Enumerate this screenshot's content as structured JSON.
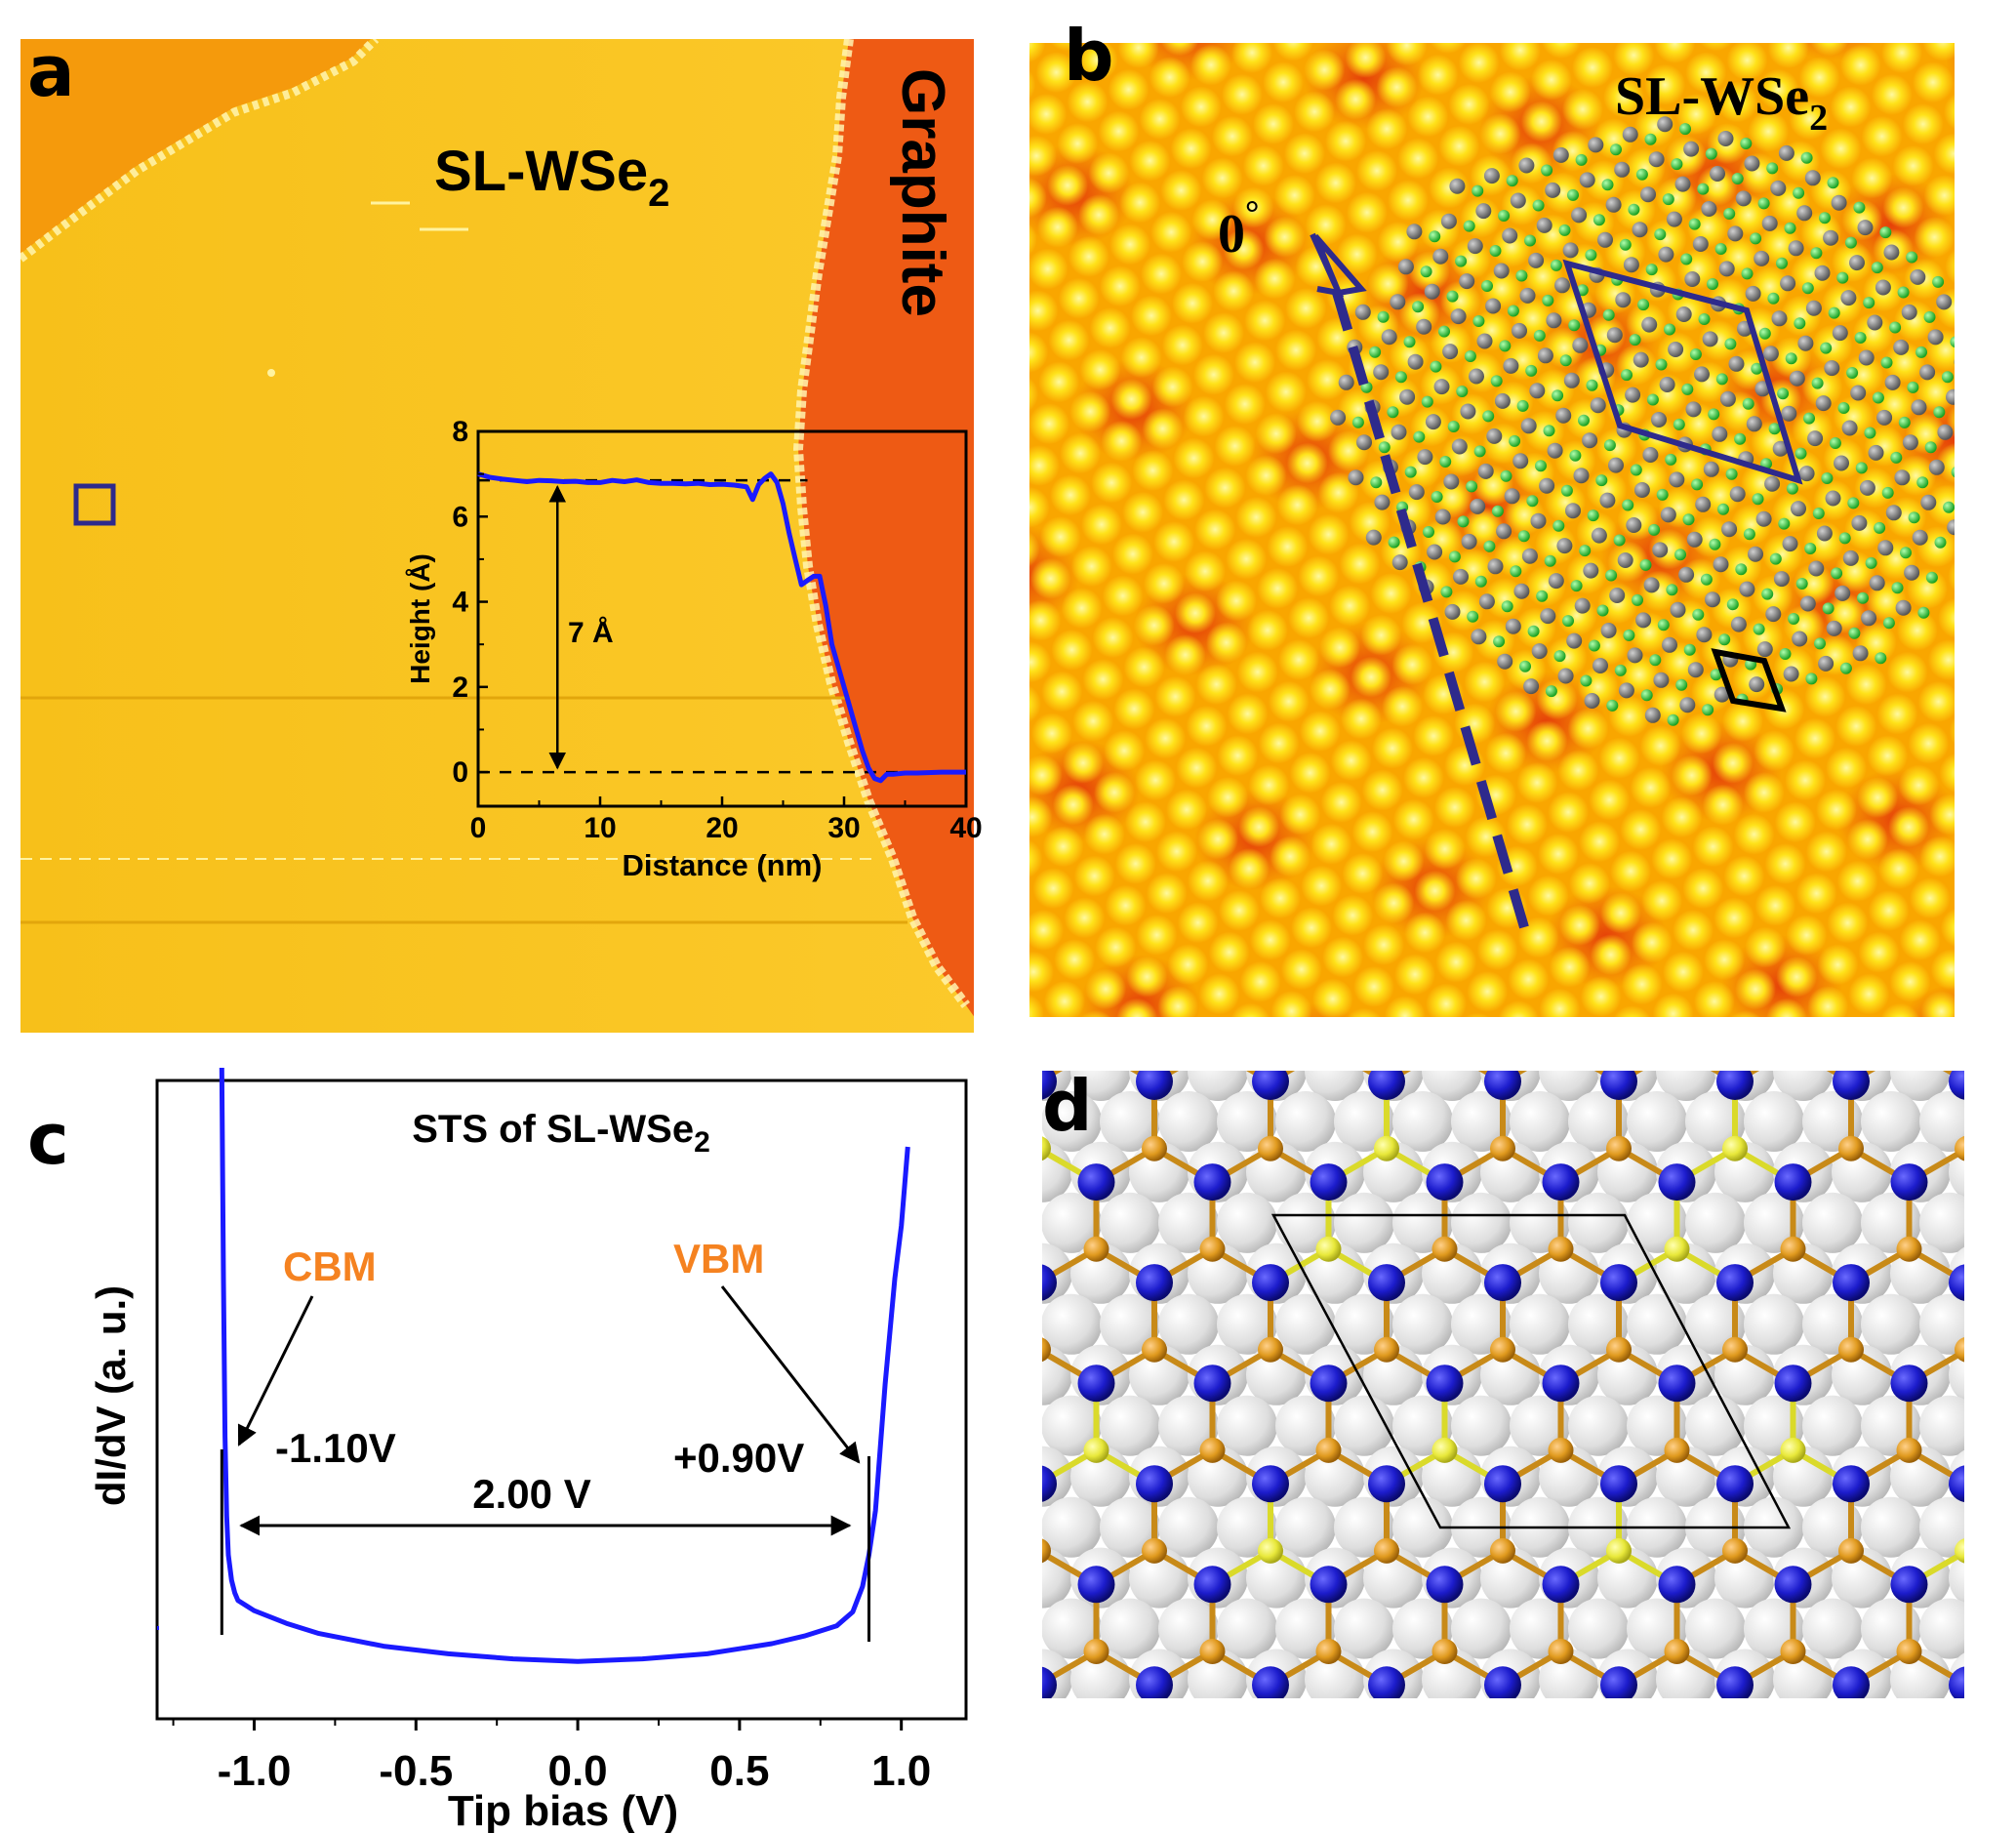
{
  "panels": {
    "a": {
      "letter": "a",
      "film_label": "SL-WSe",
      "film_sub": "2",
      "substrate_label": "Graphite",
      "inset": {
        "step_label": "7 Å",
        "chart_data": {
          "type": "line",
          "title": "",
          "xlabel": "Distance (nm)",
          "ylabel": "Height (Å)",
          "xlim": [
            0,
            40
          ],
          "ylim": [
            -0.8,
            8
          ],
          "xticks": [
            "0",
            "10",
            "20",
            "30",
            "40"
          ],
          "yticks": [
            "0",
            "2",
            "4",
            "6",
            "8"
          ],
          "series": [
            {
              "color": "#1a1aff",
              "x": [
                0,
                1,
                2,
                3,
                4,
                5,
                6,
                7,
                8,
                9,
                10,
                11,
                12,
                13,
                14,
                15,
                16,
                17,
                18,
                19,
                20,
                21,
                22,
                22.5,
                23,
                23.5,
                24,
                24.5,
                25,
                25.5,
                26,
                26.5,
                27,
                27.5,
                28,
                28.5,
                29,
                30,
                31,
                31.5,
                32,
                32.5,
                33,
                33.5,
                34,
                35,
                36,
                38,
                40
              ],
              "y": [
                7.0,
                6.92,
                6.88,
                6.85,
                6.82,
                6.85,
                6.84,
                6.82,
                6.83,
                6.8,
                6.8,
                6.85,
                6.82,
                6.86,
                6.8,
                6.78,
                6.78,
                6.77,
                6.78,
                6.75,
                6.76,
                6.74,
                6.7,
                6.4,
                6.75,
                6.9,
                7.0,
                6.8,
                6.3,
                5.6,
                5.0,
                4.4,
                4.5,
                4.6,
                4.6,
                3.9,
                3.0,
                2.0,
                1.0,
                0.5,
                0.1,
                -0.15,
                -0.2,
                -0.05,
                -0.05,
                -0.02,
                -0.02,
                0.0,
                0.0
              ]
            }
          ],
          "reference_lines": [
            6.85,
            0
          ]
        }
      }
    },
    "b": {
      "letter": "b",
      "film_label": "SL-WSe",
      "film_sub": "2",
      "angle_label": "0",
      "angle_mark": "°"
    },
    "c": {
      "letter": "c",
      "chart_data": {
        "type": "line",
        "title": "STS of SL-WSe",
        "title_sub": "2",
        "xlabel": "Tip bias (V)",
        "ylabel": "dI/dV (a. u.)",
        "xlim": [
          -1.3,
          1.2
        ],
        "xticks": [
          "-1.0",
          "-0.5",
          "0.0",
          "0.5",
          "1.0"
        ],
        "series": [
          {
            "color": "#1a1aff",
            "x": [
              -1.1,
              -1.095,
              -1.09,
              -1.085,
              -1.08,
              -1.07,
              -1.06,
              -1.05,
              -1.0,
              -0.9,
              -0.8,
              -0.6,
              -0.4,
              -0.2,
              0.0,
              0.2,
              0.4,
              0.6,
              0.7,
              0.8,
              0.85,
              0.88,
              0.9,
              0.92,
              0.95,
              0.98,
              1.0,
              1.02
            ],
            "y": [
              100,
              60,
              30,
              15,
              9,
              7,
              6,
              5.4,
              4.6,
              3.6,
              2.8,
              1.8,
              1.2,
              0.8,
              0.6,
              0.8,
              1.2,
              2.0,
              2.6,
              3.4,
              4.5,
              6.5,
              9,
              16,
              40,
              60,
              70,
              85
            ]
          }
        ],
        "annotations": {
          "cbm_label": "CBM",
          "vbm_label": "VBM",
          "cbm_value": "-1.10V",
          "vbm_value": "+0.90V",
          "gap_label": "2.00 V",
          "cbm_x": -1.1,
          "vbm_x": 0.9,
          "accent_color": "#f58220"
        }
      }
    },
    "d": {
      "letter": "d"
    }
  },
  "colors": {
    "stm_bright": "#ffe21a",
    "stm_mid": "#f9a800",
    "stm_dark": "#e8380a",
    "outline_blue": "#2e2a8c",
    "atom_w": "#1c1ccc",
    "atom_se_top": "#e09a1e",
    "atom_se_bottom": "#e8e83a",
    "atom_substrate": "#dcdcdc",
    "atom_grey": "#808080",
    "atom_green": "#2fd13a"
  }
}
